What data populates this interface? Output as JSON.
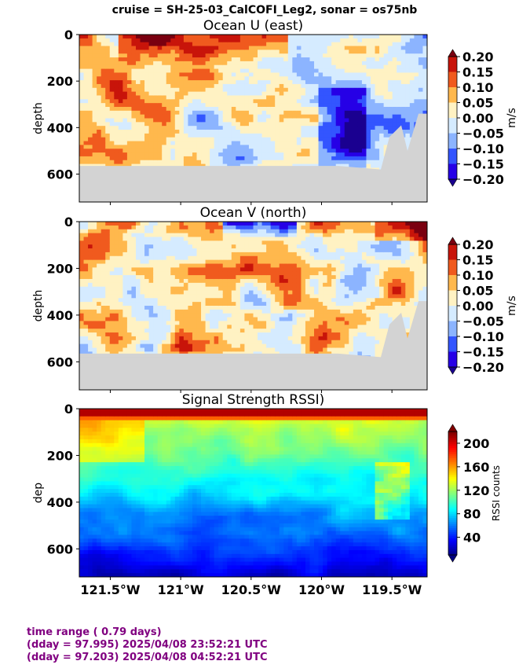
{
  "suptitle": "cruise = SH-25-03_CalCOFI_Leg2,  sonar = os75nb",
  "chart_data": [
    {
      "type": "heatmap",
      "title": "Ocean U (east)",
      "ylabel": "depth",
      "yticks": [
        "0",
        "200",
        "400",
        "600"
      ],
      "ylim": [
        720,
        0
      ],
      "xlim": [
        -121.72,
        -119.25
      ],
      "colorbar": {
        "label": "m/s",
        "ticks": [
          "0.20",
          "0.15",
          "0.10",
          "0.05",
          "0.00",
          "−0.05",
          "−0.10",
          "−0.15",
          "−0.20"
        ],
        "values": [
          0.2,
          0.15,
          0.1,
          0.05,
          0.0,
          -0.05,
          -0.1,
          -0.15,
          -0.2
        ]
      },
      "bottom_depth_m": 580
    },
    {
      "type": "heatmap",
      "title": "Ocean V (north)",
      "ylabel": "depth",
      "yticks": [
        "0",
        "200",
        "400",
        "600"
      ],
      "ylim": [
        720,
        0
      ],
      "xlim": [
        -121.72,
        -119.25
      ],
      "colorbar": {
        "label": "m/s",
        "ticks": [
          "0.20",
          "0.15",
          "0.10",
          "0.05",
          "0.00",
          "−0.05",
          "−0.10",
          "−0.15",
          "−0.20"
        ],
        "values": [
          0.2,
          0.15,
          0.1,
          0.05,
          0.0,
          -0.05,
          -0.1,
          -0.15,
          -0.2
        ]
      },
      "bottom_depth_m": 580
    },
    {
      "type": "heatmap",
      "title": "Signal Strength RSSI)",
      "ylabel": "dep",
      "yticks": [
        "0",
        "200",
        "400",
        "600"
      ],
      "ylim": [
        720,
        0
      ],
      "xlim": [
        -121.72,
        -119.25
      ],
      "xticks": [
        "121.5°W",
        "121°W",
        "120.5°W",
        "120°W",
        "119.5°W"
      ],
      "xtick_values": [
        -121.5,
        -121.0,
        -120.5,
        -120.0,
        -119.5
      ],
      "colorbar": {
        "label": "RSSI counts",
        "ticks": [
          "200",
          "160",
          "120",
          "80",
          "40"
        ],
        "values": [
          200,
          160,
          120,
          80,
          40
        ],
        "range": [
          10,
          220
        ]
      }
    }
  ],
  "colors": {
    "land": "#d3d3d3",
    "footer": "#800080"
  },
  "footer": {
    "line1": "time range ( 0.79 days)",
    "line2": "(dday = 97.995) 2025/04/08 23:52:21 UTC",
    "line3": "(dday = 97.203) 2025/04/08 04:52:21 UTC"
  }
}
